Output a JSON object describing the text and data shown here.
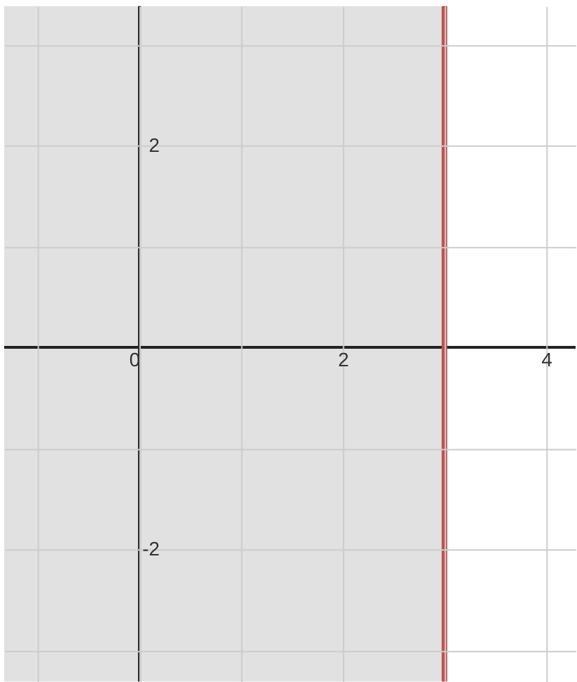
{
  "chart_data": {
    "type": "line",
    "xlim": [
      -1.33,
      4.29
    ],
    "ylim": [
      -3.31,
      3.38
    ],
    "xticks": [
      {
        "value": -1,
        "label": null
      },
      0,
      {
        "value": 1,
        "label": null
      },
      2,
      {
        "value": 3,
        "label": null
      },
      4
    ],
    "yticks": [
      {
        "value": -3,
        "label": null
      },
      -2,
      {
        "value": -1,
        "label": null
      },
      {
        "value": 1,
        "label": null
      },
      2,
      {
        "value": 3,
        "label": null
      }
    ],
    "grid": true,
    "series": [
      {
        "color": "#c0504d",
        "x": [
          3,
          3
        ],
        "values": [
          -3.31,
          3.38
        ]
      }
    ],
    "bands": [
      {
        "axis": "x",
        "from": -1.33,
        "to": 3,
        "color": "#d4d4d4"
      }
    ]
  }
}
